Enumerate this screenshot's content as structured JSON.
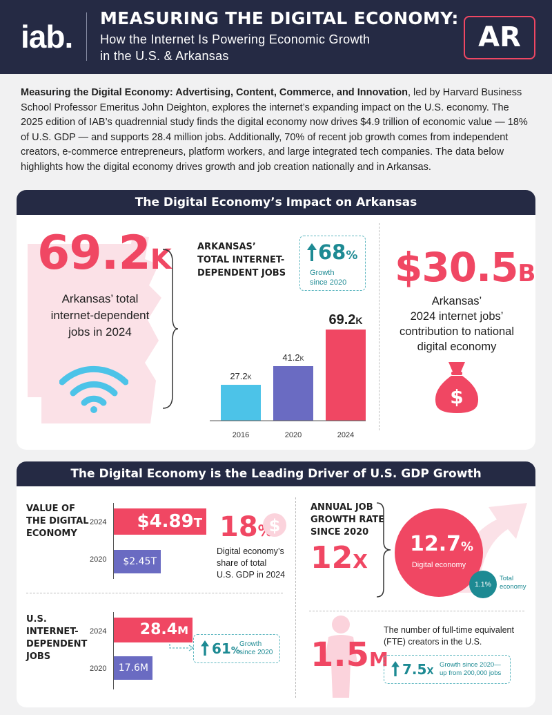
{
  "header": {
    "logo": "iab.",
    "title": "MEASURING THE DIGITAL ECONOMY:",
    "subtitle_line1": "How the Internet Is Powering Economic Growth",
    "subtitle_line2": "in the U.S. & Arkansas",
    "state_code": "AR"
  },
  "intro": {
    "bold": "Measuring the Digital Economy: Advertising, Content, Commerce, and Innovation",
    "text": ", led by Harvard Business School Professor Emeritus John Deighton, explores the internet’s expanding impact on the U.S. economy. The 2025 edition of IAB’s quadrennial study finds the digital economy now drives $4.9 trillion of economic value — 18% of U.S. GDP — and supports 28.4 million jobs. Additionally, 70% of recent job growth comes from independent creators, e-commerce entrepreneurs, platform workers, and large integrated tech companies. The data below highlights how the digital economy drives growth and job creation nationally and in Arkansas."
  },
  "section1": {
    "title": "The Digital Economy’s Impact on Arkansas",
    "jobs_value": "69.2",
    "jobs_suffix": "K",
    "jobs_desc": "Arkansas’ total internet-dependent jobs in 2024",
    "chart_title_l1": "ARKANSAS’",
    "chart_title_l2": "TOTAL INTERNET-",
    "chart_title_l3": "DEPENDENT JOBS",
    "growth_value": "68",
    "growth_suffix": "%",
    "growth_label_l1": "Growth",
    "growth_label_l2": "since 2020",
    "contribution_value": "$30.5",
    "contribution_suffix": "B",
    "contribution_desc_l1": "Arkansas’",
    "contribution_desc_l2": "2024 internet jobs’",
    "contribution_desc_l3": "contribution to national",
    "contribution_desc_l4": "digital economy",
    "icons": [
      "arkansas-map-icon",
      "wifi-icon",
      "money-bag-icon",
      "up-arrow-icon"
    ],
    "colors": {
      "pink": "#f04763",
      "purple": "#6a6bc2",
      "blue": "#4cc3e8",
      "teal": "#1d8a93",
      "navy": "#252a44"
    }
  },
  "chart_data": {
    "type": "bar",
    "categories": [
      "2016",
      "2020",
      "2024"
    ],
    "values": [
      27.2,
      41.2,
      69.2
    ],
    "value_labels": [
      "27.2",
      "41.2",
      "69.2"
    ],
    "value_suffix": "K",
    "colors": [
      "#4cc3e8",
      "#6a6bc2",
      "#f04763"
    ],
    "title": "ARKANSAS’ TOTAL INTERNET-DEPENDENT JOBS",
    "ylim": [
      0,
      80
    ]
  },
  "section2": {
    "title": "The Digital Economy is the Leading Driver of U.S. GDP Growth",
    "value_label_l1": "VALUE OF",
    "value_label_l2": "THE DIGITAL",
    "value_label_l3": "ECONOMY",
    "value_2024_year": "2024",
    "value_2024": "$4.89",
    "value_2024_suffix": "T",
    "value_2020_year": "2020",
    "value_2020": "$2.45",
    "value_2020_suffix": "T",
    "gdp_share": "18",
    "gdp_share_suffix": "%",
    "gdp_desc_l1": "Digital economy’s",
    "gdp_desc_l2": "share of total",
    "gdp_desc_l3": "U.S. GDP in 2024",
    "jobs_label_l1": "U.S.",
    "jobs_label_l2": "INTERNET-",
    "jobs_label_l3": "DEPENDENT",
    "jobs_label_l4": "JOBS",
    "jobs_2024_year": "2024",
    "jobs_2024": "28.4",
    "jobs_2024_suffix": "M",
    "jobs_2020_year": "2020",
    "jobs_2020": "17.6",
    "jobs_2020_suffix": "M",
    "jobs_growth": "61",
    "jobs_growth_suffix": "%",
    "jobs_growth_l1": "Growth",
    "jobs_growth_l2": "since 2020",
    "rate_label_l1": "ANNUAL JOB",
    "rate_label_l2": "GROWTH RATE",
    "rate_label_l3": "SINCE 2020",
    "rate_multiple": "12",
    "rate_multiple_suffix": "X",
    "digital_rate": "12.7",
    "digital_rate_suffix": "%",
    "digital_rate_label": "Digital economy",
    "total_rate": "1.1%",
    "total_rate_l1": "Total",
    "total_rate_l2": "economy",
    "creators_value": "1.5",
    "creators_suffix": "M",
    "creators_desc_l1": "The number of full-time equivalent",
    "creators_desc_l2": "(FTE) creators in the U.S.",
    "creators_growth": "7.5",
    "creators_growth_suffix": "X",
    "creators_growth_l1": "Growth since 2020—",
    "creators_growth_l2": "up from 200,000 jobs",
    "icons": [
      "dollar-coin-icon",
      "growth-arrow-icon",
      "person-icon",
      "up-arrow-icon"
    ],
    "bar_fractions": {
      "value_2024": 1.0,
      "value_2020": 0.501,
      "jobs_2024": 1.0,
      "jobs_2020": 0.62
    }
  }
}
